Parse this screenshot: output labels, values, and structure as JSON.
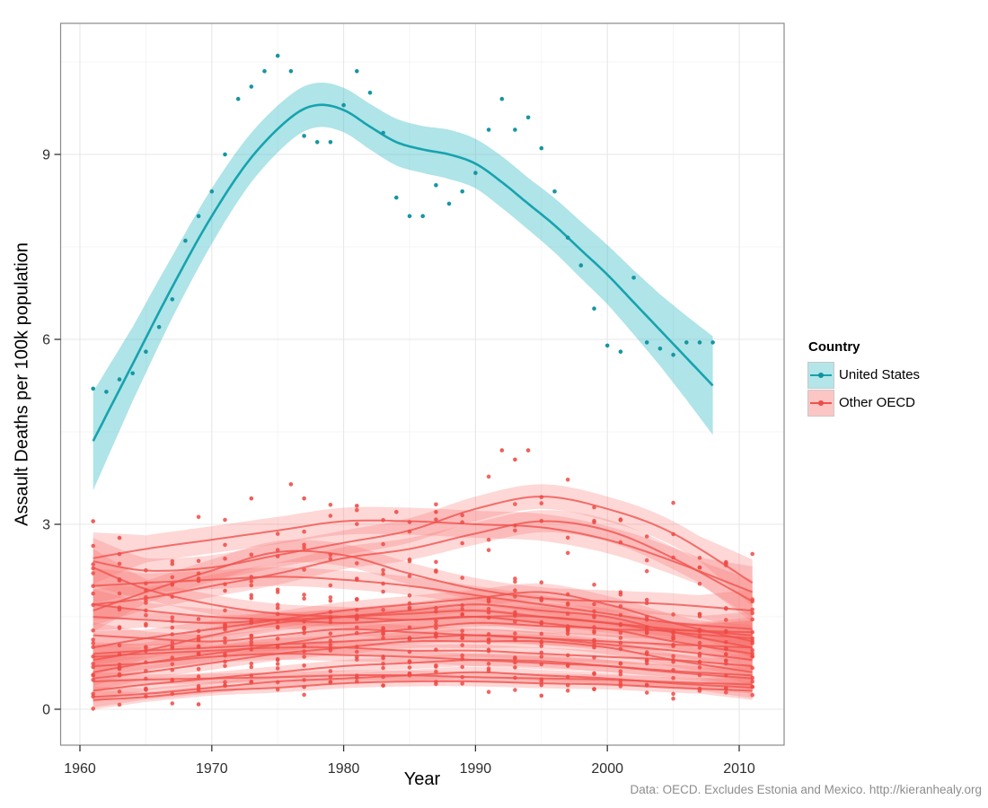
{
  "figure": {
    "x_title": "Year",
    "y_title": "Assault Deaths per 100k population",
    "caption": "Data: OECD. Excludes Estonia and Mexico. http://kieranhealy.org"
  },
  "legend": {
    "title": "Country",
    "items": [
      {
        "label": "United States",
        "line_color": "#17a3ae",
        "fill_color": "rgba(64,190,200,0.40)",
        "dot_color": "#13929c"
      },
      {
        "label": "Other OECD",
        "line_color": "#f0524e",
        "fill_color": "rgba(246,112,108,0.40)",
        "dot_color": "#ee4b45"
      }
    ]
  },
  "colors": {
    "us_line": "#17a3ae",
    "us_band": "#40bec8",
    "us_point": "#1696a2",
    "oecd_line": "#f0524e",
    "oecd_band": "#f6706c",
    "oecd_point": "#ee4b45",
    "grid_major": "#e7e7e7",
    "grid_minor": "#f4f4f4",
    "panel_border": "#8a8a8a",
    "tick": "#333333",
    "tick_label": "#2e2e2e"
  },
  "chart_data": {
    "type": "scatter",
    "smoothing": "loess with confidence bands, one smooth per country",
    "title": "",
    "xlabel": "Year",
    "ylabel": "Assault Deaths per 100k population",
    "x_ticks": [
      1960,
      1970,
      1980,
      1990,
      2000,
      2010
    ],
    "x_tick_labels": [
      "1960",
      "1970",
      "1980",
      "1990",
      "2000",
      "2010"
    ],
    "x_minor_ticks": [
      1965,
      1975,
      1985,
      1995,
      2005
    ],
    "y_ticks": [
      0,
      3,
      6,
      9
    ],
    "y_tick_labels": [
      "0",
      "3",
      "6",
      "9"
    ],
    "y_minor_ticks": [
      1.5,
      4.5,
      7.5,
      10.5
    ],
    "x_range": [
      1958.6,
      2013.4
    ],
    "y_range": [
      -0.58,
      11.13
    ],
    "grid": true,
    "legend_position": "right",
    "us": {
      "label": "United States",
      "points": [
        [
          1961,
          5.2
        ],
        [
          1962,
          5.15
        ],
        [
          1963,
          5.35
        ],
        [
          1964,
          5.45
        ],
        [
          1965,
          5.8
        ],
        [
          1966,
          6.2
        ],
        [
          1967,
          6.65
        ],
        [
          1968,
          7.6
        ],
        [
          1969,
          8.0
        ],
        [
          1970,
          8.4
        ],
        [
          1971,
          9.0
        ],
        [
          1972,
          9.9
        ],
        [
          1973,
          10.1
        ],
        [
          1974,
          10.35
        ],
        [
          1975,
          10.6
        ],
        [
          1976,
          10.35
        ],
        [
          1977,
          9.3
        ],
        [
          1978,
          9.2
        ],
        [
          1979,
          9.2
        ],
        [
          1980,
          9.8
        ],
        [
          1981,
          10.35
        ],
        [
          1982,
          10.0
        ],
        [
          1983,
          9.35
        ],
        [
          1984,
          8.3
        ],
        [
          1985,
          8.0
        ],
        [
          1986,
          8.0
        ],
        [
          1987,
          8.5
        ],
        [
          1988,
          8.2
        ],
        [
          1989,
          8.4
        ],
        [
          1990,
          8.7
        ],
        [
          1991,
          9.4
        ],
        [
          1992,
          9.9
        ],
        [
          1993,
          9.4
        ],
        [
          1994,
          9.6
        ],
        [
          1995,
          9.1
        ],
        [
          1996,
          8.4
        ],
        [
          1997,
          7.65
        ],
        [
          1998,
          7.2
        ],
        [
          1999,
          6.5
        ],
        [
          2000,
          5.9
        ],
        [
          2001,
          5.8
        ],
        [
          2002,
          7.0
        ],
        [
          2003,
          5.95
        ],
        [
          2004,
          5.85
        ],
        [
          2005,
          5.75
        ],
        [
          2006,
          5.95
        ],
        [
          2007,
          5.95
        ],
        [
          2008,
          5.95
        ]
      ],
      "smooth": [
        [
          1961,
          4.35,
          0.8
        ],
        [
          1964,
          5.6,
          0.6
        ],
        [
          1967,
          6.85,
          0.5
        ],
        [
          1970,
          8.0,
          0.45
        ],
        [
          1973,
          8.95,
          0.4
        ],
        [
          1976,
          9.6,
          0.37
        ],
        [
          1978,
          9.8,
          0.36
        ],
        [
          1980,
          9.72,
          0.36
        ],
        [
          1982,
          9.45,
          0.37
        ],
        [
          1984,
          9.2,
          0.38
        ],
        [
          1986,
          9.08,
          0.38
        ],
        [
          1988,
          9.0,
          0.4
        ],
        [
          1990,
          8.85,
          0.4
        ],
        [
          1992,
          8.55,
          0.42
        ],
        [
          1994,
          8.2,
          0.42
        ],
        [
          1996,
          7.85,
          0.44
        ],
        [
          1998,
          7.45,
          0.46
        ],
        [
          2000,
          7.05,
          0.48
        ],
        [
          2002,
          6.6,
          0.52
        ],
        [
          2004,
          6.15,
          0.58
        ],
        [
          2006,
          5.7,
          0.68
        ],
        [
          2008,
          5.25,
          0.8
        ]
      ]
    },
    "oecd": {
      "label": "Other OECD",
      "node_years": [
        1961,
        1965,
        1970,
        1975,
        1980,
        1985,
        1990,
        1995,
        2000,
        2005,
        2011
      ],
      "point_year_step": 2,
      "series": [
        {
          "id": "oecd-01",
          "values": [
            2.45,
            2.6,
            2.75,
            2.9,
            3.05,
            3.05,
            3.0,
            2.95,
            2.75,
            2.4,
            1.9
          ],
          "hw": 0.22,
          "jitter": 0.45
        },
        {
          "id": "oecd-02",
          "values": [
            2.4,
            2.25,
            2.3,
            2.5,
            2.7,
            2.9,
            3.25,
            3.45,
            3.25,
            2.85,
            2.05
          ],
          "hw": 0.2,
          "jitter": 0.5
        },
        {
          "id": "oecd-03",
          "values": [
            1.7,
            1.8,
            2.0,
            2.2,
            2.45,
            2.6,
            2.85,
            3.05,
            2.9,
            2.45,
            1.75
          ],
          "hw": 0.18,
          "jitter": 0.4
        },
        {
          "id": "oecd-04",
          "values": [
            1.6,
            1.9,
            2.25,
            2.55,
            2.5,
            2.2,
            1.95,
            1.8,
            1.75,
            1.7,
            1.6
          ],
          "hw": 0.18,
          "jitter": 0.4
        },
        {
          "id": "oecd-05",
          "values": [
            2.0,
            2.05,
            2.1,
            2.15,
            2.1,
            2.0,
            1.85,
            1.7,
            1.55,
            1.4,
            1.3
          ],
          "hw": 0.15,
          "jitter": 0.35
        },
        {
          "id": "oecd-06",
          "values": [
            2.3,
            1.95,
            1.7,
            1.55,
            1.5,
            1.45,
            1.5,
            1.5,
            1.4,
            1.25,
            1.15
          ],
          "hw": 0.16,
          "jitter": 0.35
        },
        {
          "id": "oecd-07",
          "values": [
            1.0,
            1.15,
            1.3,
            1.45,
            1.6,
            1.7,
            1.8,
            1.9,
            1.7,
            1.4,
            1.1
          ],
          "hw": 0.14,
          "jitter": 0.3
        },
        {
          "id": "oecd-08",
          "values": [
            0.8,
            0.95,
            1.2,
            1.4,
            1.5,
            1.6,
            1.7,
            1.6,
            1.5,
            1.25,
            1.0
          ],
          "hw": 0.13,
          "jitter": 0.3
        },
        {
          "id": "oecd-09",
          "values": [
            1.5,
            1.45,
            1.4,
            1.45,
            1.5,
            1.55,
            1.6,
            1.5,
            1.4,
            1.3,
            1.2
          ],
          "hw": 0.12,
          "jitter": 0.3
        },
        {
          "id": "oecd-10",
          "values": [
            0.6,
            0.75,
            0.9,
            1.05,
            1.2,
            1.3,
            1.4,
            1.35,
            1.3,
            1.1,
            0.9
          ],
          "hw": 0.12,
          "jitter": 0.28
        },
        {
          "id": "oecd-11",
          "values": [
            1.2,
            1.15,
            1.1,
            1.2,
            1.3,
            1.25,
            1.2,
            1.15,
            1.1,
            1.05,
            1.0
          ],
          "hw": 0.11,
          "jitter": 0.25
        },
        {
          "id": "oecd-12",
          "values": [
            0.9,
            0.95,
            1.0,
            1.05,
            1.1,
            1.15,
            1.2,
            1.15,
            1.05,
            0.95,
            0.8
          ],
          "hw": 0.1,
          "jitter": 0.25
        },
        {
          "id": "oecd-13",
          "values": [
            1.7,
            1.6,
            1.5,
            1.45,
            1.4,
            1.45,
            1.5,
            1.4,
            1.3,
            1.28,
            1.25
          ],
          "hw": 0.13,
          "jitter": 0.28
        },
        {
          "id": "oecd-14",
          "values": [
            0.5,
            0.6,
            0.75,
            0.9,
            1.0,
            1.1,
            1.1,
            1.1,
            1.0,
            0.8,
            0.6
          ],
          "hw": 0.11,
          "jitter": 0.25
        },
        {
          "id": "oecd-15",
          "values": [
            0.3,
            0.4,
            0.5,
            0.6,
            0.7,
            0.75,
            0.8,
            0.78,
            0.7,
            0.6,
            0.5
          ],
          "hw": 0.1,
          "jitter": 0.22
        },
        {
          "id": "oecd-16",
          "values": [
            0.2,
            0.25,
            0.35,
            0.45,
            0.5,
            0.55,
            0.6,
            0.55,
            0.5,
            0.42,
            0.35
          ],
          "hw": 0.09,
          "jitter": 0.2
        },
        {
          "id": "oecd-17",
          "values": [
            0.7,
            0.75,
            0.85,
            0.9,
            0.88,
            0.85,
            0.8,
            0.75,
            0.7,
            0.62,
            0.55
          ],
          "hw": 0.1,
          "jitter": 0.22
        },
        {
          "id": "oecd-18",
          "values": [
            0.45,
            0.48,
            0.5,
            0.52,
            0.55,
            0.55,
            0.52,
            0.5,
            0.48,
            0.44,
            0.4
          ],
          "hw": 0.08,
          "jitter": 0.18
        },
        {
          "id": "oecd-19",
          "values": [
            0.15,
            0.2,
            0.3,
            0.35,
            0.42,
            0.45,
            0.45,
            0.42,
            0.4,
            0.35,
            0.3
          ],
          "hw": 0.08,
          "jitter": 0.18
        },
        {
          "id": "oecd-20",
          "values": [
            0.85,
            0.9,
            0.95,
            1.0,
            1.0,
            0.95,
            0.95,
            0.9,
            0.85,
            0.8,
            0.7
          ],
          "hw": 0.1,
          "jitter": 0.22
        }
      ],
      "outlier_points": [
        [
          1961,
          3.05
        ],
        [
          1963,
          2.78
        ],
        [
          1969,
          0.08
        ],
        [
          1973,
          3.42
        ],
        [
          1976,
          3.65
        ],
        [
          1977,
          3.42
        ],
        [
          1981,
          3.3
        ],
        [
          1984,
          3.2
        ],
        [
          1987,
          3.2
        ],
        [
          1992,
          4.2
        ],
        [
          1993,
          4.05
        ],
        [
          1994,
          4.2
        ],
        [
          1995,
          0.22
        ]
      ]
    }
  }
}
